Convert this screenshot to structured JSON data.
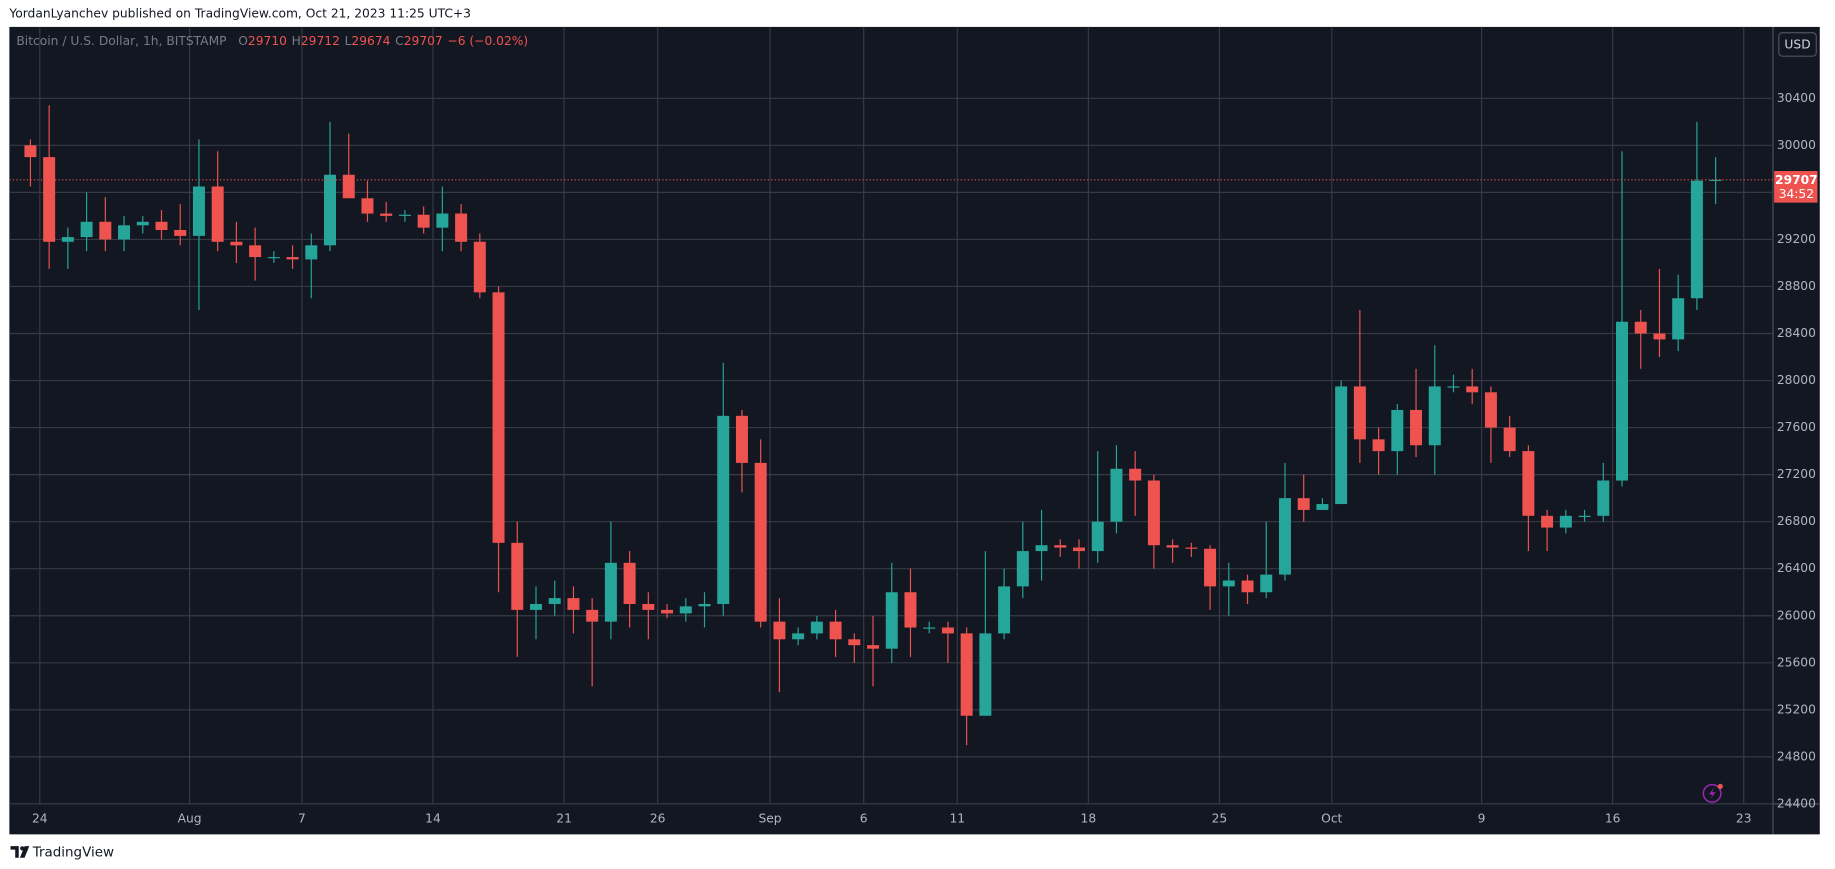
{
  "header": "YordanLyanchev published on TradingView.com, Oct 21, 2023 11:25 UTC+3",
  "footer": "TradingView",
  "chart_data": {
    "type": "candlestick",
    "legend": {
      "symbol": "Bitcoin / U.S. Dollar, 1h, BITSTAMP",
      "fields": [
        {
          "label": "O",
          "value": 29710
        },
        {
          "label": "H",
          "value": 29712
        },
        {
          "label": "L",
          "value": 29674
        },
        {
          "label": "C",
          "value": 29707
        }
      ],
      "change": "−6 (−0.02%)"
    },
    "currency": "USD",
    "countdown": "34:52",
    "up_color": "#26a69a",
    "down_color": "#ef5350",
    "grid": true,
    "xlim": [
      "2023-07-22",
      "2023-10-25"
    ],
    "xticks": [
      {
        "value": "2023-07-24",
        "label": "24"
      },
      {
        "value": "2023-08-01",
        "label": "Aug"
      },
      {
        "value": "2023-08-07",
        "label": "7"
      },
      {
        "value": "2023-08-14",
        "label": "14"
      },
      {
        "value": "2023-08-21",
        "label": "21"
      },
      {
        "value": "2023-08-26",
        "label": "26"
      },
      {
        "value": "2023-09-01",
        "label": "Sep"
      },
      {
        "value": "2023-09-06",
        "label": "6"
      },
      {
        "value": "2023-09-11",
        "label": "11"
      },
      {
        "value": "2023-09-18",
        "label": "18"
      },
      {
        "value": "2023-09-25",
        "label": "25"
      },
      {
        "value": "2023-10-01",
        "label": "Oct"
      },
      {
        "value": "2023-10-09",
        "label": "9"
      },
      {
        "value": "2023-10-16",
        "label": "16"
      },
      {
        "value": "2023-10-23",
        "label": "23"
      }
    ],
    "ylim": [
      24400,
      31000
    ],
    "yticks": [
      24400,
      24800,
      25200,
      25600,
      26000,
      26400,
      26800,
      27200,
      27600,
      28000,
      28400,
      28800,
      29200,
      29600,
      30000,
      30400
    ],
    "x": [
      "2023-07-23",
      "2023-07-24",
      "2023-07-25",
      "2023-07-26",
      "2023-07-27",
      "2023-07-28",
      "2023-07-29",
      "2023-07-30",
      "2023-07-31",
      "2023-08-01",
      "2023-08-02",
      "2023-08-03",
      "2023-08-04",
      "2023-08-05",
      "2023-08-06",
      "2023-08-07",
      "2023-08-08",
      "2023-08-09",
      "2023-08-10",
      "2023-08-11",
      "2023-08-12",
      "2023-08-13",
      "2023-08-14",
      "2023-08-15",
      "2023-08-16",
      "2023-08-17",
      "2023-08-18",
      "2023-08-19",
      "2023-08-20",
      "2023-08-21",
      "2023-08-22",
      "2023-08-23",
      "2023-08-24",
      "2023-08-25",
      "2023-08-26",
      "2023-08-27",
      "2023-08-28",
      "2023-08-29",
      "2023-08-30",
      "2023-08-31",
      "2023-09-01",
      "2023-09-02",
      "2023-09-03",
      "2023-09-04",
      "2023-09-05",
      "2023-09-06",
      "2023-09-07",
      "2023-09-08",
      "2023-09-09",
      "2023-09-10",
      "2023-09-11",
      "2023-09-12",
      "2023-09-13",
      "2023-09-14",
      "2023-09-15",
      "2023-09-16",
      "2023-09-17",
      "2023-09-18",
      "2023-09-19",
      "2023-09-20",
      "2023-09-21",
      "2023-09-22",
      "2023-09-23",
      "2023-09-24",
      "2023-09-25",
      "2023-09-26",
      "2023-09-27",
      "2023-09-28",
      "2023-09-29",
      "2023-09-30",
      "2023-10-01",
      "2023-10-02",
      "2023-10-03",
      "2023-10-04",
      "2023-10-05",
      "2023-10-06",
      "2023-10-07",
      "2023-10-08",
      "2023-10-09",
      "2023-10-10",
      "2023-10-11",
      "2023-10-12",
      "2023-10-13",
      "2023-10-14",
      "2023-10-15",
      "2023-10-16",
      "2023-10-17",
      "2023-10-18",
      "2023-10-19",
      "2023-10-20",
      "2023-10-21"
    ],
    "ohlc": [
      [
        30000,
        30050,
        29650,
        29900
      ],
      [
        29900,
        30340,
        28950,
        29180
      ],
      [
        29180,
        29300,
        28950,
        29220
      ],
      [
        29220,
        29600,
        29100,
        29350
      ],
      [
        29350,
        29560,
        29100,
        29200
      ],
      [
        29200,
        29400,
        29100,
        29320
      ],
      [
        29320,
        29400,
        29250,
        29350
      ],
      [
        29350,
        29450,
        29200,
        29280
      ],
      [
        29280,
        29500,
        29150,
        29230
      ],
      [
        29230,
        30050,
        28600,
        29650
      ],
      [
        29650,
        29950,
        29100,
        29180
      ],
      [
        29180,
        29350,
        29000,
        29150
      ],
      [
        29150,
        29300,
        28850,
        29050
      ],
      [
        29050,
        29100,
        29000,
        29050
      ],
      [
        29050,
        29150,
        28950,
        29030
      ],
      [
        29030,
        29250,
        28700,
        29150
      ],
      [
        29150,
        30200,
        29100,
        29750
      ],
      [
        29750,
        30100,
        29600,
        29550
      ],
      [
        29550,
        29700,
        29350,
        29420
      ],
      [
        29420,
        29520,
        29350,
        29400
      ],
      [
        29400,
        29450,
        29350,
        29410
      ],
      [
        29410,
        29480,
        29250,
        29300
      ],
      [
        29300,
        29650,
        29100,
        29420
      ],
      [
        29420,
        29500,
        29100,
        29180
      ],
      [
        29180,
        29250,
        28700,
        28750
      ],
      [
        28750,
        28800,
        26200,
        26620
      ],
      [
        26620,
        26800,
        25650,
        26050
      ],
      [
        26050,
        26250,
        25800,
        26100
      ],
      [
        26100,
        26300,
        26000,
        26150
      ],
      [
        26150,
        26250,
        25850,
        26050
      ],
      [
        26050,
        26150,
        25400,
        25950
      ],
      [
        25950,
        26800,
        25800,
        26450
      ],
      [
        26450,
        26550,
        25900,
        26100
      ],
      [
        26100,
        26200,
        25800,
        26050
      ],
      [
        26050,
        26100,
        25980,
        26020
      ],
      [
        26020,
        26150,
        25950,
        26080
      ],
      [
        26080,
        26200,
        25900,
        26100
      ],
      [
        26100,
        28150,
        26000,
        27700
      ],
      [
        27700,
        27750,
        27050,
        27300
      ],
      [
        27300,
        27500,
        25900,
        25950
      ],
      [
        25950,
        26150,
        25350,
        25800
      ],
      [
        25800,
        25900,
        25750,
        25850
      ],
      [
        25850,
        26000,
        25800,
        25950
      ],
      [
        25950,
        26050,
        25650,
        25800
      ],
      [
        25800,
        25850,
        25600,
        25750
      ],
      [
        25750,
        26000,
        25400,
        25720
      ],
      [
        25720,
        26450,
        25600,
        26200
      ],
      [
        26200,
        26400,
        25650,
        25900
      ],
      [
        25900,
        25950,
        25850,
        25900
      ],
      [
        25900,
        25950,
        25600,
        25850
      ],
      [
        25850,
        25900,
        24900,
        25150
      ],
      [
        25150,
        26550,
        25150,
        25850
      ],
      [
        25850,
        26400,
        25800,
        26250
      ],
      [
        26250,
        26800,
        26150,
        26550
      ],
      [
        26550,
        26900,
        26300,
        26600
      ],
      [
        26600,
        26650,
        26500,
        26580
      ],
      [
        26580,
        26650,
        26400,
        26550
      ],
      [
        26550,
        27400,
        26450,
        26800
      ],
      [
        26800,
        27450,
        26700,
        27250
      ],
      [
        27250,
        27400,
        26850,
        27150
      ],
      [
        27150,
        27200,
        26400,
        26600
      ],
      [
        26600,
        26650,
        26450,
        26580
      ],
      [
        26580,
        26620,
        26500,
        26570
      ],
      [
        26570,
        26600,
        26050,
        26250
      ],
      [
        26250,
        26450,
        26000,
        26300
      ],
      [
        26300,
        26350,
        26100,
        26200
      ],
      [
        26200,
        26800,
        26150,
        26350
      ],
      [
        26350,
        27300,
        26300,
        27000
      ],
      [
        27000,
        27200,
        26800,
        26900
      ],
      [
        26900,
        27000,
        26900,
        26950
      ],
      [
        26950,
        28000,
        26950,
        27950
      ],
      [
        27950,
        28600,
        27300,
        27500
      ],
      [
        27500,
        27600,
        27200,
        27400
      ],
      [
        27400,
        27800,
        27200,
        27750
      ],
      [
        27750,
        28100,
        27350,
        27450
      ],
      [
        27450,
        28300,
        27200,
        27950
      ],
      [
        27950,
        28050,
        27900,
        27950
      ],
      [
        27950,
        28100,
        27800,
        27900
      ],
      [
        27900,
        27950,
        27300,
        27600
      ],
      [
        27600,
        27700,
        27350,
        27400
      ],
      [
        27400,
        27450,
        26550,
        26850
      ],
      [
        26850,
        26900,
        26550,
        26750
      ],
      [
        26750,
        26900,
        26700,
        26850
      ],
      [
        26850,
        26900,
        26800,
        26850
      ],
      [
        26850,
        27300,
        26800,
        27150
      ],
      [
        27150,
        29950,
        27100,
        28500
      ],
      [
        28500,
        28600,
        28100,
        28400
      ],
      [
        28400,
        28950,
        28200,
        28350
      ],
      [
        28350,
        28900,
        28250,
        28700
      ],
      [
        28700,
        30200,
        28600,
        29700
      ],
      [
        29700,
        29900,
        29500,
        29707
      ]
    ]
  }
}
